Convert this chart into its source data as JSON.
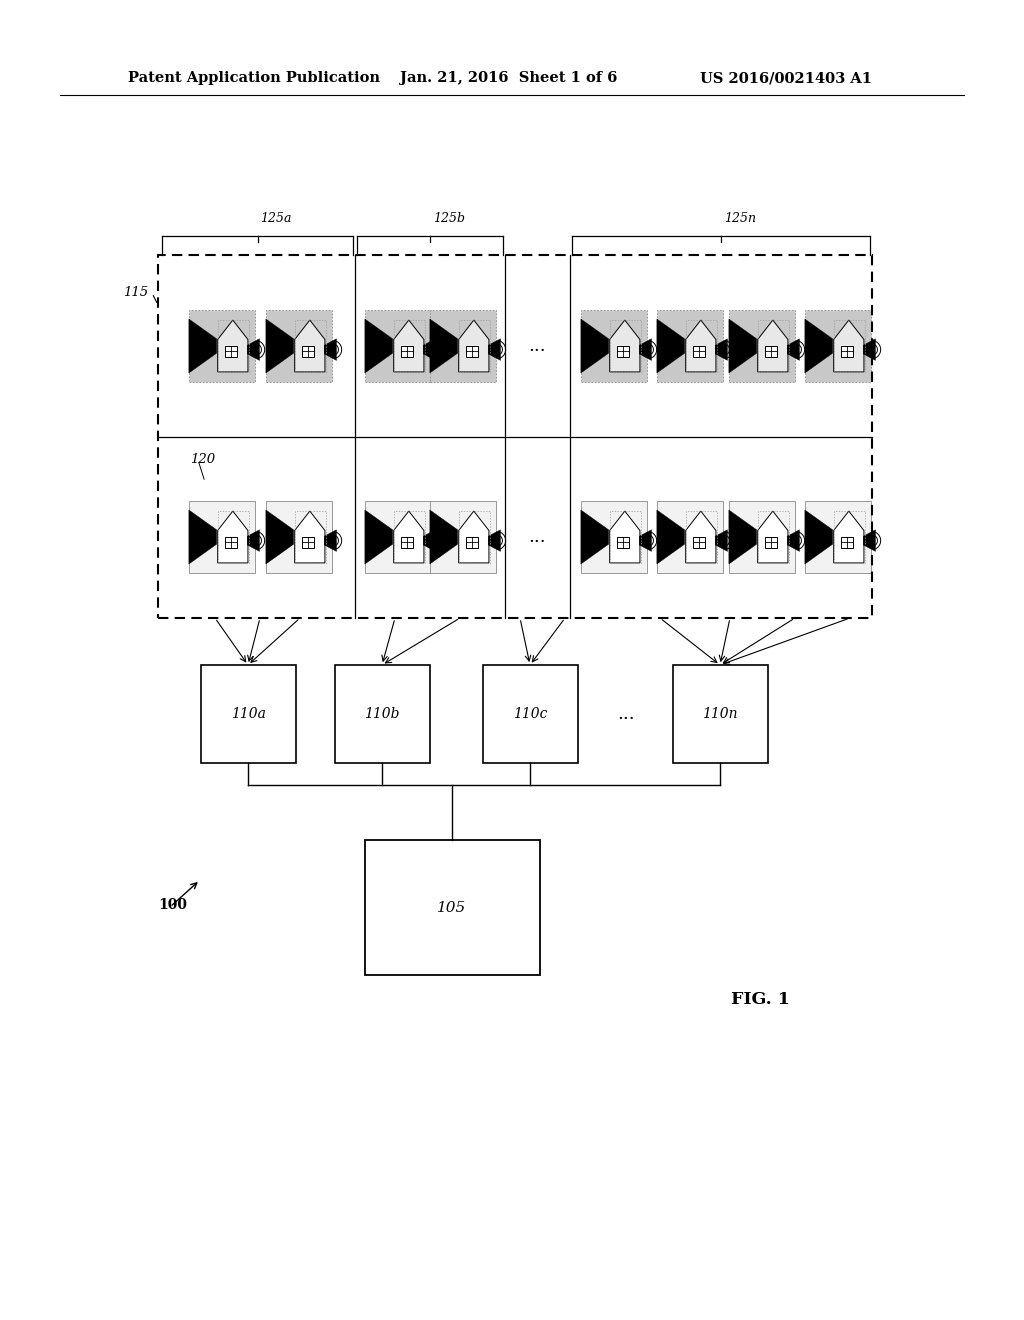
{
  "header_left": "Patent Application Publication",
  "header_center": "Jan. 21, 2016  Sheet 1 of 6",
  "header_right": "US 2016/0021403 A1",
  "fig_caption": "FIG. 1",
  "label_100": "100",
  "label_105": "105",
  "label_115": "115",
  "label_120": "120",
  "label_125a": "125a",
  "label_125b": "125b",
  "label_125n": "125n",
  "label_110a": "110a",
  "label_110b": "110b",
  "label_110c": "110c",
  "label_110n": "110n",
  "bg_color": "#ffffff",
  "line_color": "#000000"
}
